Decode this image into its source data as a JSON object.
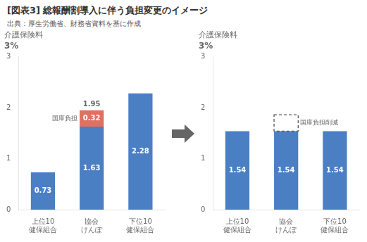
{
  "title": [
    "[図表3]",
    "総報酬割導入に伴う負担変更のイメージ"
  ],
  "subtitle": "出典：厚生労働省、財務省資料を基に作成",
  "chart_data": [
    {
      "type": "bar",
      "stacked": true,
      "ylabel": "介護保険料",
      "annotations": [
        "3%"
      ],
      "categories": [
        "上位10\n健保組合",
        "協会\nけんぽ",
        "下位10\n健保組合"
      ],
      "series": [
        {
          "color": "#4B7FC4",
          "values": [
            0.73,
            1.63,
            2.28
          ]
        },
        {
          "color": "#E07060",
          "values": [
            0,
            0.32,
            0
          ],
          "value_labels": [
            null,
            "0.32",
            null
          ],
          "annotation": "国庫負担"
        }
      ],
      "totals": [
        null,
        1.95,
        null
      ],
      "ylim": [
        0,
        3
      ],
      "yticks": [
        0,
        1,
        2,
        3
      ],
      "grid": false,
      "data_labels": true
    },
    {
      "type": "bar",
      "stacked": true,
      "ylabel": "介護保険料",
      "annotations": [
        "3%"
      ],
      "categories": [
        "上位10\n健保組合",
        "協会\nけんぽ",
        "下位10\n健保組合"
      ],
      "series": [
        {
          "color": "#4B7FC4",
          "values": [
            1.54,
            1.54,
            1.54
          ]
        },
        {
          "color": "#ffffff",
          "line_style": "dashed",
          "values": [
            0,
            0.32,
            0
          ],
          "value_labels": [
            null,
            null,
            null
          ],
          "annotation": "国庫負担削減"
        }
      ],
      "ylim": [
        0,
        3
      ],
      "yticks": [
        0,
        1,
        2,
        3
      ],
      "grid": false,
      "data_labels": true
    }
  ]
}
